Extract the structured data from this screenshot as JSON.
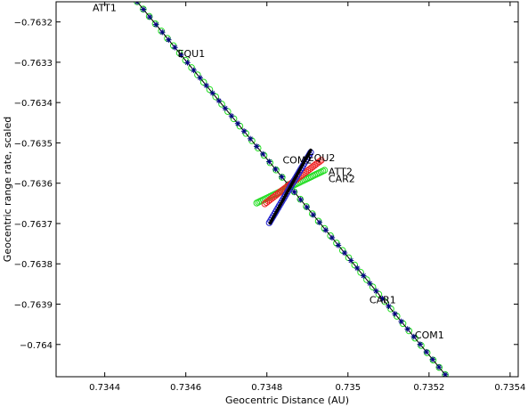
{
  "chart_data": {
    "type": "scatter",
    "title": "",
    "xlabel": "Geocentric Distance (AU)",
    "ylabel": "Geocentric range rate, scaled",
    "xlim": [
      0.73428,
      0.73542
    ],
    "ylim": [
      -0.76408,
      -0.76315
    ],
    "xticks": [
      0.7344,
      0.7346,
      0.7348,
      0.735,
      0.7352,
      0.7354
    ],
    "xtick_labels": [
      "0.7344",
      "0.7346",
      "0.7348",
      "0.735",
      "0.7352",
      "0.7354"
    ],
    "yticks": [
      -0.7632,
      -0.7633,
      -0.7634,
      -0.7635,
      -0.7636,
      -0.7637,
      -0.7638,
      -0.7639,
      -0.764
    ],
    "ytick_labels": [
      "−0.7632",
      "−0.7633",
      "−0.7634",
      "−0.7635",
      "−0.7636",
      "−0.7637",
      "−0.7638",
      "−0.7639",
      "−0.764"
    ],
    "grid": false,
    "colors": {
      "main_line": "#000000",
      "main_markers": "#000080",
      "green": "#22dd22",
      "red": "#ee2222",
      "blue": "#2222cc",
      "black": "#000000"
    },
    "series": [
      {
        "type": "line-markers",
        "marker": "asterisk",
        "color": "#000080",
        "points": [
          [
            0.73448,
            -0.76315
          ],
          [
            0.73524,
            -0.764075
          ]
        ],
        "count": 50
      },
      {
        "type": "circles",
        "marker": "circle",
        "color": "#22dd22",
        "points": [
          [
            0.73448,
            -0.76315
          ],
          [
            0.73524,
            -0.764075
          ]
        ],
        "count": 52
      },
      {
        "type": "circles",
        "marker": "circle",
        "color": "#22dd22",
        "points": [
          [
            0.734775,
            -0.763649
          ],
          [
            0.734942,
            -0.763568
          ]
        ],
        "count": 42
      },
      {
        "type": "circles",
        "marker": "circle",
        "color": "#ee2222",
        "points": [
          [
            0.734795,
            -0.763651
          ],
          [
            0.734934,
            -0.763543
          ]
        ],
        "count": 34
      },
      {
        "type": "circles",
        "marker": "circle",
        "color": "#2222cc",
        "points": [
          [
            0.734806,
            -0.763698
          ],
          [
            0.734908,
            -0.763524
          ]
        ],
        "count": 34
      },
      {
        "type": "line",
        "color": "#000000",
        "points": [
          [
            0.734808,
            -0.763699
          ],
          [
            0.734908,
            -0.763518
          ]
        ]
      }
    ],
    "annotations": [
      {
        "text": "ATT1",
        "x": 0.73437,
        "y": -0.763173
      },
      {
        "text": "EQU1",
        "x": 0.73458,
        "y": -0.763287
      },
      {
        "text": "COM2",
        "x": 0.734839,
        "y": -0.763551
      },
      {
        "text": "EQU2",
        "x": 0.734901,
        "y": -0.763545
      },
      {
        "text": "ATT2",
        "x": 0.734952,
        "y": -0.76358
      },
      {
        "text": "CAR2",
        "x": 0.734952,
        "y": -0.763597
      },
      {
        "text": "CAR1",
        "x": 0.735053,
        "y": -0.763898
      },
      {
        "text": "COM1",
        "x": 0.735165,
        "y": -0.763985
      }
    ]
  }
}
